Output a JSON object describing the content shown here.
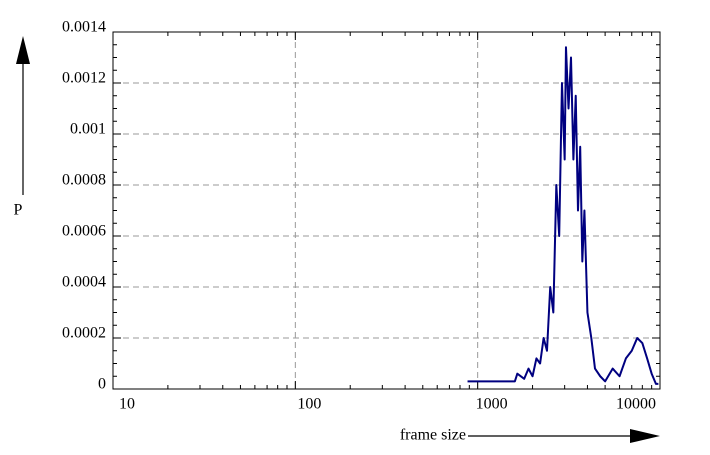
{
  "chart_data": {
    "type": "line",
    "x_label": "frame size",
    "y_label": "P",
    "x": [
      880,
      1600,
      1650,
      1800,
      1900,
      2000,
      2100,
      2200,
      2300,
      2400,
      2500,
      2600,
      2700,
      2800,
      2900,
      3000,
      3050,
      3150,
      3250,
      3350,
      3450,
      3550,
      3650,
      3750,
      3850,
      4000,
      4200,
      4400,
      4700,
      5000,
      5500,
      6000,
      6500,
      7000,
      7500,
      8000,
      8500,
      9000,
      9500,
      9800
    ],
    "series": [
      {
        "color": "#000080",
        "values": [
          3e-05,
          3e-05,
          6e-05,
          4e-05,
          8e-05,
          5e-05,
          0.00012,
          0.0001,
          0.0002,
          0.00015,
          0.0004,
          0.0003,
          0.0008,
          0.0006,
          0.0012,
          0.0009,
          0.00134,
          0.0011,
          0.0013,
          0.0009,
          0.00115,
          0.0007,
          0.00095,
          0.0005,
          0.0007,
          0.0003,
          0.0002,
          8e-05,
          5e-05,
          3e-05,
          8e-05,
          5e-05,
          0.00012,
          0.00015,
          0.0002,
          0.00018,
          0.00012,
          6e-05,
          2e-05,
          2e-05
        ]
      }
    ],
    "xlim": [
      10,
      10000
    ],
    "xticks": [
      10,
      100,
      1000,
      10000
    ],
    "x_log": true,
    "ylim": [
      0,
      0.0014
    ],
    "yticks": [
      0,
      0.0002,
      0.0004,
      0.0006,
      0.0008,
      0.001,
      0.0012,
      0.0014
    ],
    "grid": true
  }
}
